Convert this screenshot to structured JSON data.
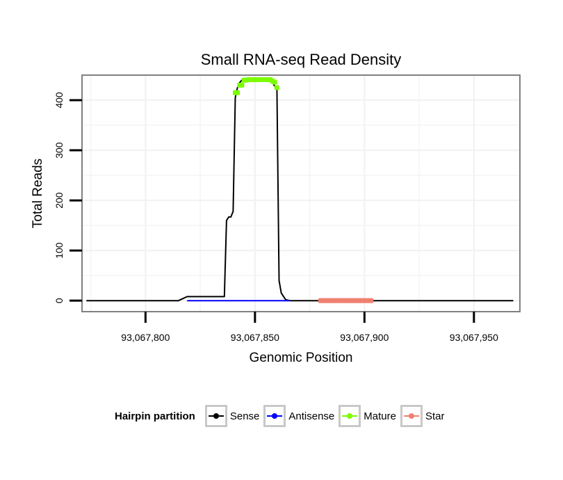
{
  "chart_data": {
    "type": "line",
    "title": "Small RNA-seq Read Density",
    "xlabel": "Genomic Position",
    "ylabel": "Total Reads",
    "xlim": [
      93067771,
      93067971
    ],
    "ylim": [
      -22,
      450
    ],
    "x_ticks": [
      93067800,
      93067850,
      93067900,
      93067950
    ],
    "x_tick_labels": [
      "93,067,800",
      "93,067,850",
      "93,067,900",
      "93,067,950"
    ],
    "y_ticks": [
      0,
      100,
      200,
      300,
      400
    ],
    "y_tick_labels": [
      "0",
      "100",
      "200",
      "300",
      "400"
    ],
    "grid": true,
    "series": [
      {
        "name": "Sense",
        "color": "#000000",
        "kind": "line",
        "x": [
          93067773,
          93067815,
          93067817,
          93067819,
          93067836,
          93067837,
          93067838,
          93067839,
          93067840,
          93067841,
          93067842,
          93067843,
          93067844,
          93067846,
          93067848,
          93067850,
          93067852,
          93067854,
          93067856,
          93067858,
          93067859,
          93067860,
          93067861,
          93067862,
          93067864,
          93067866,
          93067880,
          93067903,
          93067968
        ],
        "y": [
          0,
          0,
          4,
          8,
          8,
          160,
          167,
          167,
          178,
          405,
          425,
          435,
          440,
          441,
          441,
          441,
          441,
          441,
          441,
          435,
          428,
          425,
          40,
          15,
          2,
          0,
          0,
          0,
          0
        ]
      },
      {
        "name": "Antisense",
        "color": "#0000ff",
        "kind": "line",
        "x": [
          93067819,
          93067866
        ],
        "y": [
          0,
          0
        ]
      },
      {
        "name": "Mature",
        "color": "#7cfc00",
        "kind": "points",
        "x": [
          93067841,
          93067842,
          93067843,
          93067844,
          93067845,
          93067846,
          93067847,
          93067848,
          93067849,
          93067850,
          93067851,
          93067852,
          93067853,
          93067854,
          93067855,
          93067856,
          93067857,
          93067858,
          93067859,
          93067860
        ],
        "y": [
          415,
          415,
          430,
          430,
          440,
          440,
          441,
          441,
          441,
          441,
          441,
          441,
          441,
          441,
          441,
          441,
          441,
          438,
          436,
          425
        ]
      },
      {
        "name": "Star",
        "color": "#f08070",
        "kind": "points",
        "x": [
          93067880,
          93067881,
          93067882,
          93067883,
          93067884,
          93067885,
          93067886,
          93067887,
          93067888,
          93067889,
          93067890,
          93067891,
          93067892,
          93067893,
          93067894,
          93067895,
          93067896,
          93067897,
          93067898,
          93067899,
          93067900,
          93067901,
          93067902,
          93067903
        ],
        "y": [
          0,
          0,
          0,
          0,
          0,
          0,
          0,
          0,
          0,
          0,
          0,
          0,
          0,
          0,
          0,
          0,
          0,
          0,
          0,
          0,
          0,
          0,
          0,
          0
        ]
      }
    ]
  },
  "legend": {
    "title": "Hairpin partition",
    "items": [
      {
        "label": "Sense",
        "color": "#000000"
      },
      {
        "label": "Antisense",
        "color": "#0000ff"
      },
      {
        "label": "Mature",
        "color": "#7cfc00"
      },
      {
        "label": "Star",
        "color": "#f08070"
      }
    ]
  }
}
